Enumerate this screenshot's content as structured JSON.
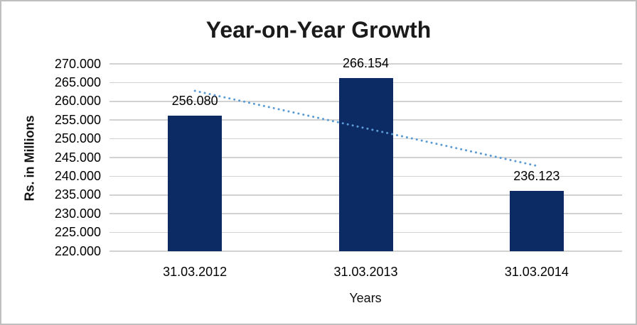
{
  "chart_data": {
    "type": "bar",
    "title": "Year-on-Year Growth",
    "xlabel": "Years",
    "ylabel": "Rs. in Millions",
    "categories": [
      "31.03.2012",
      "31.03.2013",
      "31.03.2014"
    ],
    "values": [
      256.08,
      266.154,
      236.123
    ],
    "value_labels": [
      "256.080",
      "266.154",
      "236.123"
    ],
    "ylim": [
      220,
      270
    ],
    "ytick_step": 5,
    "ytick_labels_top_to_bottom": [
      "270.000",
      "265.000",
      "260.000",
      "255.000",
      "250.000",
      "245.000",
      "240.000",
      "235.000",
      "230.000",
      "225.000",
      "220.000"
    ],
    "grid": true,
    "legend": "none",
    "trendline": {
      "type": "linear",
      "style": "dotted",
      "start_value": 262.8,
      "end_value": 242.8,
      "color": "#5b9bd5"
    },
    "colors": {
      "bar": "#0c2a64",
      "gridline": "#d2d2d2",
      "text": "#000000",
      "title": "#1a1a1a",
      "frame_border": "#bfbfbf",
      "background": "#ffffff"
    }
  }
}
